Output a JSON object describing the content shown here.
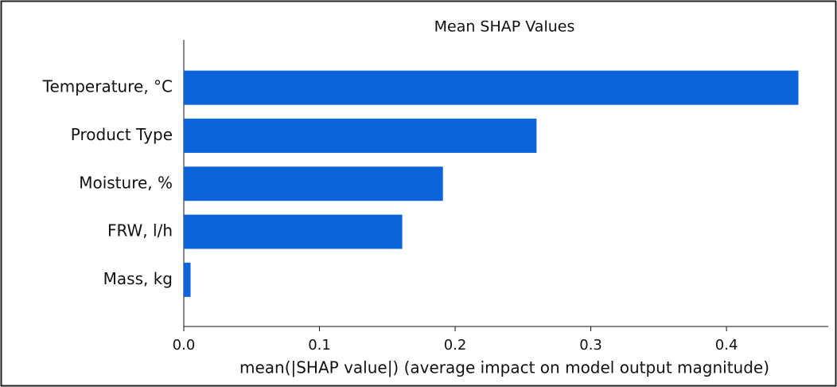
{
  "chart_data": {
    "type": "barh",
    "title": "Mean SHAP Values",
    "xlabel": "mean(|SHAP value|) (average impact on model output magnitude)",
    "categories": [
      "Temperature, °C",
      "Product Type",
      "Moisture, %",
      "FRW, l/h",
      "Mass, kg"
    ],
    "values": [
      0.453,
      0.26,
      0.191,
      0.161,
      0.005
    ],
    "color": "#0b64d9",
    "xlim": [
      0,
      0.475
    ],
    "xticks": [
      {
        "value": 0,
        "label": "0.0"
      },
      0.1,
      0.2,
      0.3,
      0.4
    ]
  }
}
